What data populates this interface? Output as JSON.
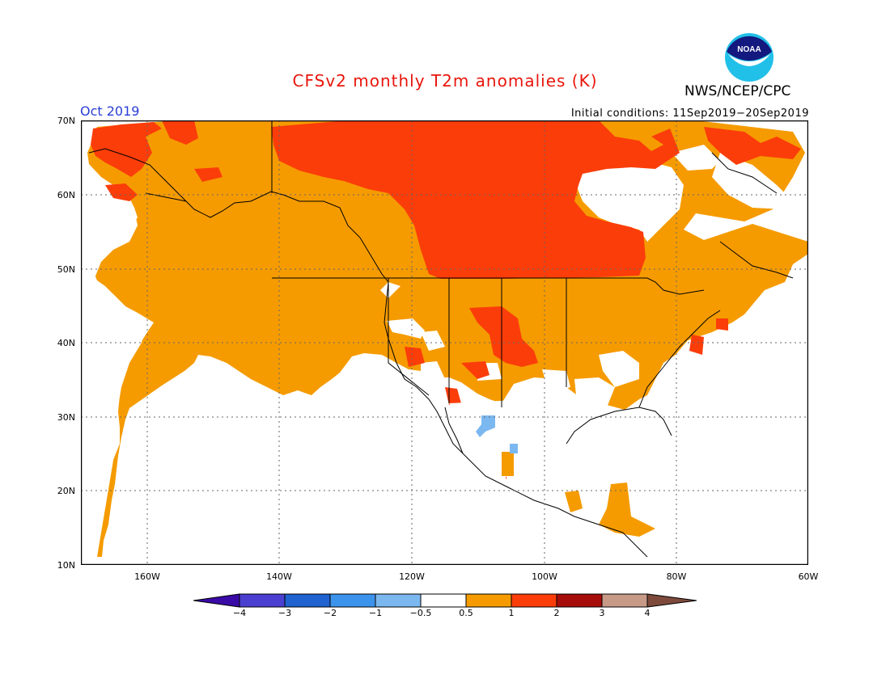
{
  "title": "CFSv2 monthly T2m anomalies (K)",
  "month": "Oct 2019",
  "initial_conditions": "Initial conditions: 11Sep2019−20Sep2019",
  "agency": "NWS/NCEP/CPC",
  "logo_text": "NOAA",
  "lat_labels": [
    "70N",
    "60N",
    "50N",
    "40N",
    "30N",
    "20N",
    "10N"
  ],
  "lon_labels": [
    "160W",
    "140W",
    "120W",
    "100W",
    "80W",
    "60W"
  ],
  "colorbar": {
    "labels": [
      "−4",
      "−3",
      "−2",
      "−1",
      "−0.5",
      "0.5",
      "1",
      "2",
      "3",
      "4"
    ],
    "colors": [
      "#3a0aa6",
      "#4a3fd0",
      "#1f62d0",
      "#3c93ec",
      "#7cb8f0",
      "#ffffff",
      "#f59b00",
      "#fb3d0a",
      "#a60d0a",
      "#c79a87",
      "#7e4a3c"
    ]
  },
  "colors": {
    "anomaly_0_5_to_1": "#f59b00",
    "anomaly_1_to_2": "#fb3d0a",
    "anomaly_2_to_3": "#a60d0a",
    "anomaly_neg_0_5_to_neg_1": "#7cb8f0"
  }
}
